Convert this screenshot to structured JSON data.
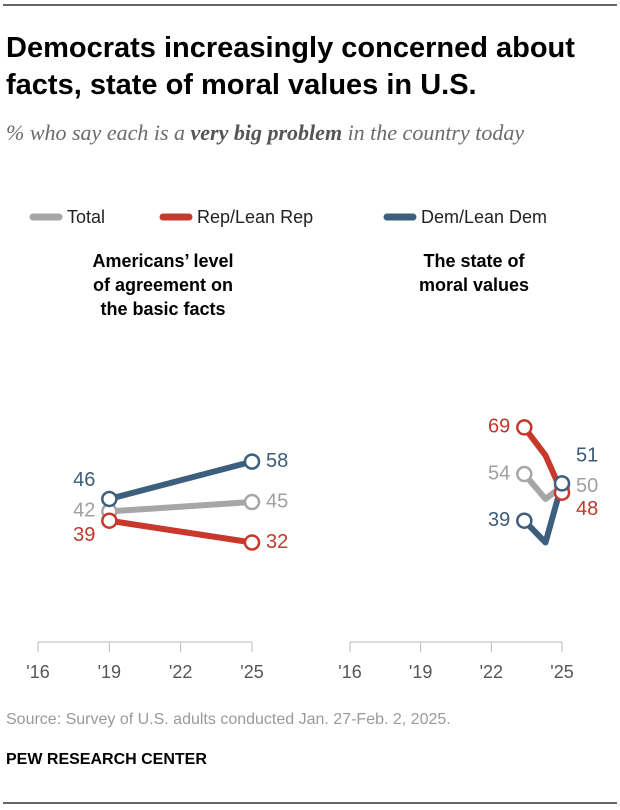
{
  "title": "Democrats increasingly concerned about facts, state of moral values in U.S.",
  "subtitle": [
    "% who say each is a ",
    "very big problem",
    " in the country today"
  ],
  "source": "Source: Survey of U.S. adults conducted Jan. 27-Feb. 2, 2025.",
  "credit": "PEW RESEARCH CENTER",
  "chart_data": [
    {
      "type": "line",
      "title": [
        "Americans’ level",
        "of agreement on",
        "the basic facts"
      ],
      "x": [
        2019,
        2025
      ],
      "xlim": [
        2016,
        2025
      ],
      "xticks": [
        {
          "value": 2016,
          "label": "'16"
        },
        {
          "value": 2019,
          "label": "'19"
        },
        {
          "value": 2022,
          "label": "'22"
        },
        {
          "value": 2025,
          "label": "'25"
        }
      ],
      "ylim": [
        0,
        100
      ],
      "series": [
        {
          "name": "Total",
          "color": "#a6a6a6",
          "values": [
            42,
            45
          ]
        },
        {
          "name": "Rep/Lean Rep",
          "color": "#c8382c",
          "values": [
            39,
            32
          ]
        },
        {
          "name": "Dem/Lean Dem",
          "color": "#3d5f7e",
          "values": [
            46,
            58
          ]
        }
      ]
    },
    {
      "type": "line",
      "title": [
        "The state of",
        "moral values"
      ],
      "x": [
        2023.4,
        2024.3,
        2025
      ],
      "xlim": [
        2016,
        2025
      ],
      "xticks": [
        {
          "value": 2016,
          "label": "'16"
        },
        {
          "value": 2019,
          "label": "'19"
        },
        {
          "value": 2022,
          "label": "'22"
        },
        {
          "value": 2025,
          "label": "'25"
        }
      ],
      "ylim": [
        0,
        100
      ],
      "series": [
        {
          "name": "Total",
          "color": "#a6a6a6",
          "values": [
            54,
            46,
            50
          ]
        },
        {
          "name": "Rep/Lean Rep",
          "color": "#c8382c",
          "values": [
            69,
            60,
            48
          ]
        },
        {
          "name": "Dem/Lean Dem",
          "color": "#3d5f7e",
          "values": [
            39,
            32,
            51
          ]
        }
      ]
    }
  ]
}
